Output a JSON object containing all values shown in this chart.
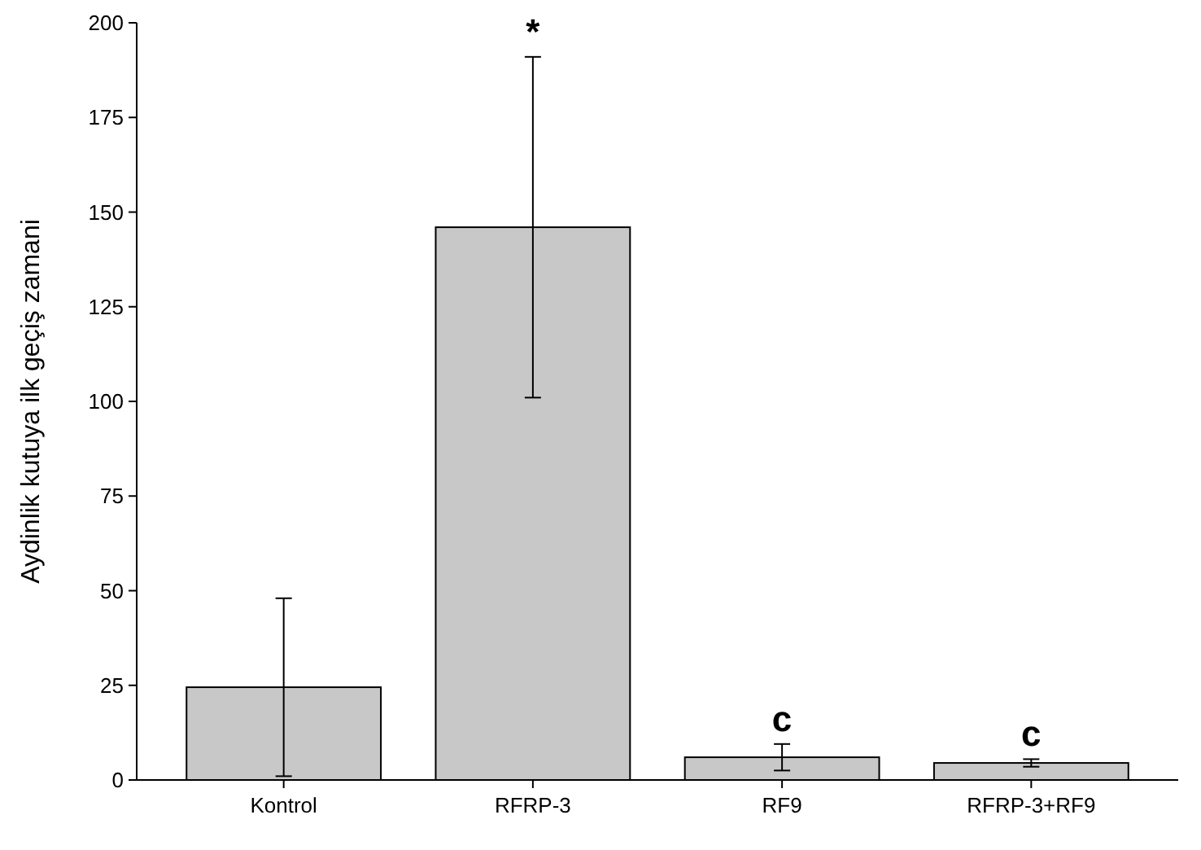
{
  "chart_data": {
    "type": "bar",
    "ylabel": "Aydinlik kutuya ilk geçiş zamani",
    "categories": [
      "Kontrol",
      "RFRP-3",
      "RF9",
      "RFRP-3+RF9"
    ],
    "values": [
      24.5,
      146,
      6,
      4.5
    ],
    "errors": [
      23.5,
      45,
      3.5,
      1
    ],
    "color": "#c8c8c8",
    "ylim": [
      0,
      200
    ],
    "yticks": [
      0,
      25,
      50,
      75,
      100,
      125,
      150,
      175,
      200
    ],
    "grid": false,
    "annotations": [
      {
        "text": "*",
        "x": "RFRP-3",
        "y": 191
      },
      {
        "text": "c",
        "x": "RF9",
        "y": 9.5
      },
      {
        "text": "c",
        "x": "RFRP-3+RF9",
        "y": 5.5
      }
    ]
  }
}
